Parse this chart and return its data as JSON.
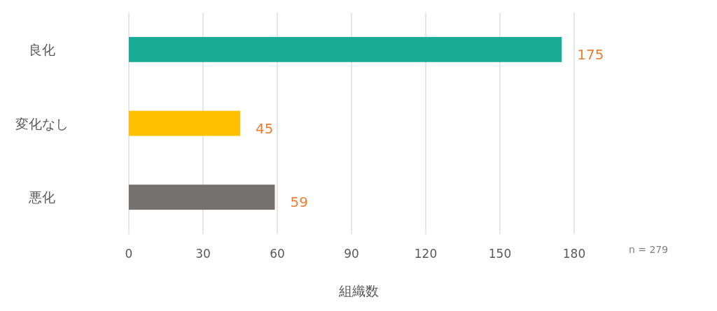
{
  "chart_data": {
    "type": "bar",
    "orientation": "horizontal",
    "categories": [
      "良化",
      "変化なし",
      "悪化"
    ],
    "values": [
      175,
      45,
      59
    ],
    "colors": [
      "#17ab96",
      "#ffc000",
      "#767171"
    ],
    "xlim": [
      0,
      180
    ],
    "xticks": [
      0,
      30,
      60,
      90,
      120,
      150,
      180
    ],
    "xlabel": "組織数",
    "grid": "x",
    "data_labels": true,
    "annotations": [
      "n = 279"
    ]
  }
}
